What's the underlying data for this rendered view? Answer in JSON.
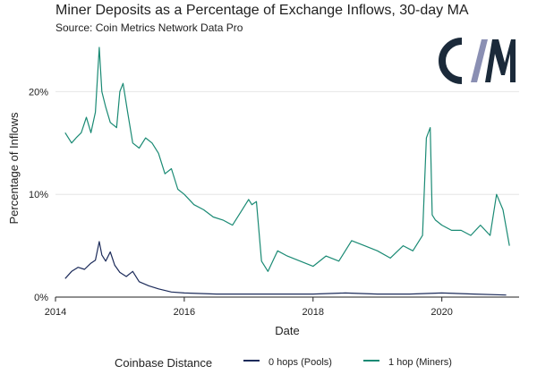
{
  "header": {
    "title": "Miner Deposits as a Percentage of Exchange Inflows, 30-day MA",
    "subtitle": "Source: Coin Metrics Network Data Pro"
  },
  "logo": {
    "icon": "coin-metrics-logo-icon",
    "colors": [
      "#1b2a3a",
      "#8a8fb3"
    ]
  },
  "legend": {
    "title": "Coinbase Distance",
    "items": [
      {
        "label": "0 hops (Pools)",
        "color": "#1c2b5a"
      },
      {
        "label": "1 hop (Miners)",
        "color": "#1a8a74"
      }
    ]
  },
  "chart_data": {
    "type": "line",
    "title": "Miner Deposits as a Percentage of Exchange Inflows, 30-day MA",
    "xlabel": "Date",
    "ylabel": "Percentage of Inflows",
    "xlim": [
      2014.0,
      2021.2
    ],
    "ylim": [
      0,
      25
    ],
    "x_ticks": [
      2014,
      2016,
      2018,
      2020
    ],
    "x_tick_labels": [
      "2014",
      "2016",
      "2018",
      "2020"
    ],
    "y_ticks": [
      0,
      10,
      20
    ],
    "y_tick_labels": [
      "0%",
      "10%",
      "20%"
    ],
    "grid": "horizontal",
    "legend_position": "bottom",
    "series": [
      {
        "name": "0 hops (Pools)",
        "color": "#1c2b5a",
        "x": [
          2014.15,
          2014.25,
          2014.35,
          2014.45,
          2014.55,
          2014.62,
          2014.68,
          2014.72,
          2014.78,
          2014.85,
          2014.92,
          2015.0,
          2015.1,
          2015.2,
          2015.3,
          2015.45,
          2015.6,
          2015.8,
          2016.0,
          2016.5,
          2017.0,
          2017.5,
          2018.0,
          2018.5,
          2019.0,
          2019.5,
          2020.0,
          2020.5,
          2021.0
        ],
        "values": [
          1.8,
          2.5,
          2.9,
          2.7,
          3.3,
          3.6,
          5.4,
          4.1,
          3.5,
          4.4,
          3.1,
          2.4,
          2.0,
          2.5,
          1.5,
          1.1,
          0.8,
          0.5,
          0.4,
          0.3,
          0.3,
          0.3,
          0.3,
          0.4,
          0.3,
          0.3,
          0.4,
          0.3,
          0.2
        ]
      },
      {
        "name": "1 hop (Miners)",
        "color": "#1a8a74",
        "x": [
          2014.15,
          2014.2,
          2014.25,
          2014.32,
          2014.4,
          2014.48,
          2014.55,
          2014.62,
          2014.68,
          2014.72,
          2014.78,
          2014.85,
          2014.95,
          2015.0,
          2015.05,
          2015.12,
          2015.2,
          2015.3,
          2015.4,
          2015.5,
          2015.6,
          2015.7,
          2015.8,
          2015.9,
          2016.0,
          2016.15,
          2016.3,
          2016.45,
          2016.6,
          2016.75,
          2016.9,
          2017.0,
          2017.05,
          2017.12,
          2017.2,
          2017.3,
          2017.45,
          2017.6,
          2017.8,
          2018.0,
          2018.2,
          2018.4,
          2018.6,
          2018.8,
          2019.0,
          2019.2,
          2019.4,
          2019.55,
          2019.7,
          2019.76,
          2019.82,
          2019.85,
          2019.9,
          2020.0,
          2020.15,
          2020.3,
          2020.45,
          2020.6,
          2020.75,
          2020.85,
          2020.95,
          2021.05
        ],
        "values": [
          16.0,
          15.5,
          15.0,
          15.5,
          16.0,
          17.5,
          16.0,
          18.0,
          24.3,
          20.0,
          18.5,
          17.0,
          16.5,
          20.0,
          20.8,
          18.0,
          15.0,
          14.5,
          15.5,
          15.0,
          14.0,
          12.0,
          12.5,
          10.5,
          10.0,
          9.0,
          8.5,
          7.8,
          7.5,
          7.0,
          8.5,
          9.5,
          9.0,
          9.3,
          3.5,
          2.5,
          4.5,
          4.0,
          3.5,
          3.0,
          4.0,
          3.5,
          5.5,
          5.0,
          4.5,
          3.8,
          5.0,
          4.5,
          6.0,
          15.5,
          16.5,
          8.0,
          7.5,
          7.0,
          6.5,
          6.5,
          6.0,
          7.0,
          6.0,
          10.0,
          8.5,
          5.0
        ]
      }
    ]
  }
}
